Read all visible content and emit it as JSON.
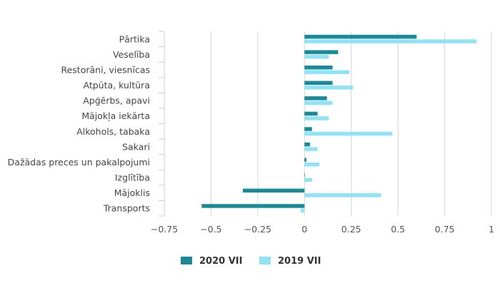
{
  "chart_data": {
    "type": "bar",
    "orientation": "horizontal",
    "categories": [
      "Pārtika",
      "Veselība",
      "Restorāni, viesnīcas",
      "Atpūta, kultūra",
      "Apģērbs, apavi",
      "Mājokļa iekārta",
      "Alkohols, tabaka",
      "Sakari",
      "Dažādas preces un pakalpojumi",
      "Izglītība",
      "Mājoklis",
      "Transports"
    ],
    "series": [
      {
        "name": "2020 VII",
        "color": "#1a8a99",
        "values": [
          0.6,
          0.18,
          0.15,
          0.15,
          0.12,
          0.07,
          0.04,
          0.03,
          0.01,
          0.0,
          -0.33,
          -0.55
        ]
      },
      {
        "name": "2019 VII",
        "color": "#8fe3f4",
        "values": [
          0.92,
          0.13,
          0.24,
          0.26,
          0.15,
          0.13,
          0.47,
          0.07,
          0.08,
          0.04,
          0.41,
          -0.02
        ]
      }
    ],
    "xlim": [
      -0.75,
      1
    ],
    "xticks": [
      -0.75,
      -0.5,
      -0.25,
      0,
      0.25,
      0.5,
      0.75,
      1
    ],
    "xtick_labels": [
      "−0.75",
      "−0.5",
      "−0.25",
      "0",
      "0.25",
      "0.5",
      "0.75",
      "1"
    ],
    "grid": true,
    "legend_position": "bottom-center",
    "title": "",
    "xlabel": "",
    "ylabel": ""
  }
}
